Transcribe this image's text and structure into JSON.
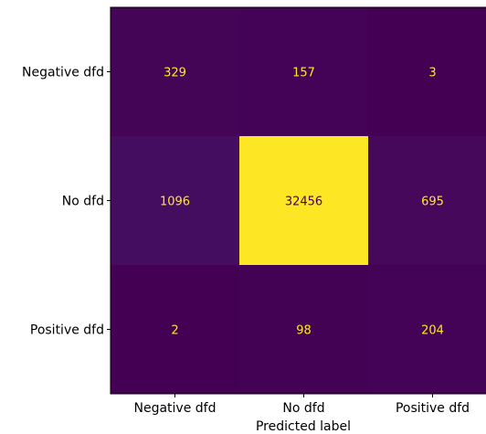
{
  "chart_data": {
    "type": "heatmap",
    "title": "",
    "xlabel": "Predicted label",
    "ylabel": "",
    "x_categories": [
      "Negative dfd",
      "No dfd",
      "Positive dfd"
    ],
    "y_categories": [
      "Negative dfd",
      "No dfd",
      "Positive dfd"
    ],
    "values": [
      [
        329,
        157,
        3
      ],
      [
        1096,
        32456,
        695
      ],
      [
        2,
        98,
        204
      ]
    ],
    "colormap": "viridis",
    "colors": {
      "low": "#440154",
      "high": "#fde725",
      "text_on_dark": "#fde725",
      "text_on_light": "#440154"
    },
    "grid": false,
    "colorbar": false
  }
}
